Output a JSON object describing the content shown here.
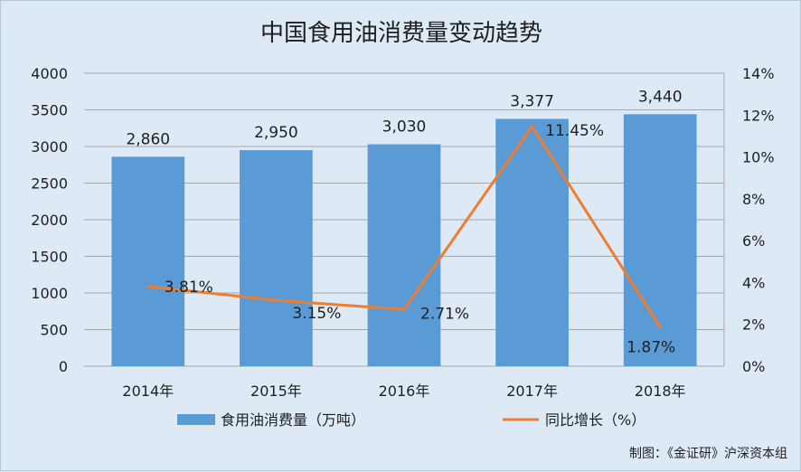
{
  "chart_data": {
    "type": "bar",
    "title": "中国食用油消费量变动趋势",
    "categories": [
      "2014年",
      "2015年",
      "2016年",
      "2017年",
      "2018年"
    ],
    "series": [
      {
        "name": "食用油消费量（万吨）",
        "type": "bar",
        "axis": "left",
        "values": [
          2860,
          2950,
          3030,
          3377,
          3440
        ],
        "labels": [
          "2,860",
          "2,950",
          "3,030",
          "3,377",
          "3,440"
        ],
        "color": "#5b9bd5"
      },
      {
        "name": "同比增长（%）",
        "type": "line",
        "axis": "right",
        "values": [
          3.81,
          3.15,
          2.71,
          11.45,
          1.87
        ],
        "labels": [
          "3.81%",
          "3.15%",
          "2.71%",
          "11.45%",
          "1.87%"
        ],
        "color": "#ed7d31"
      }
    ],
    "y_left": {
      "ylim": [
        0,
        4000
      ],
      "ticks": [
        0,
        500,
        1000,
        1500,
        2000,
        2500,
        3000,
        3500,
        4000
      ],
      "tick_labels": [
        "0",
        "500",
        "1000",
        "1500",
        "2000",
        "2500",
        "3000",
        "3500",
        "4000"
      ]
    },
    "y_right": {
      "ylim": [
        0,
        14
      ],
      "ticks": [
        0,
        2,
        4,
        6,
        8,
        10,
        12,
        14
      ],
      "tick_labels": [
        "0%",
        "2%",
        "4%",
        "6%",
        "8%",
        "10%",
        "12%",
        "14%"
      ]
    },
    "grid": true,
    "legend_position": "bottom",
    "source": "制图：《金证研》沪深资本组"
  }
}
